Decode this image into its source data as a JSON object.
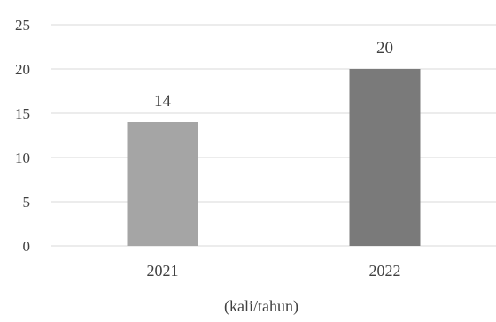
{
  "chart_data": {
    "type": "bar",
    "categories": [
      "2021",
      "2022"
    ],
    "values": [
      14,
      20
    ],
    "data_labels": [
      "14",
      "20"
    ],
    "bar_colors": [
      "#a5a5a5",
      "#7a7a7a"
    ],
    "title": "",
    "xlabel": "(kali/tahun)",
    "ylabel": "",
    "ylim": [
      0,
      25
    ],
    "yticks": [
      0,
      5,
      10,
      15,
      20,
      25
    ],
    "grid": true,
    "grid_color": "#d9d9d9",
    "legend": "none"
  }
}
